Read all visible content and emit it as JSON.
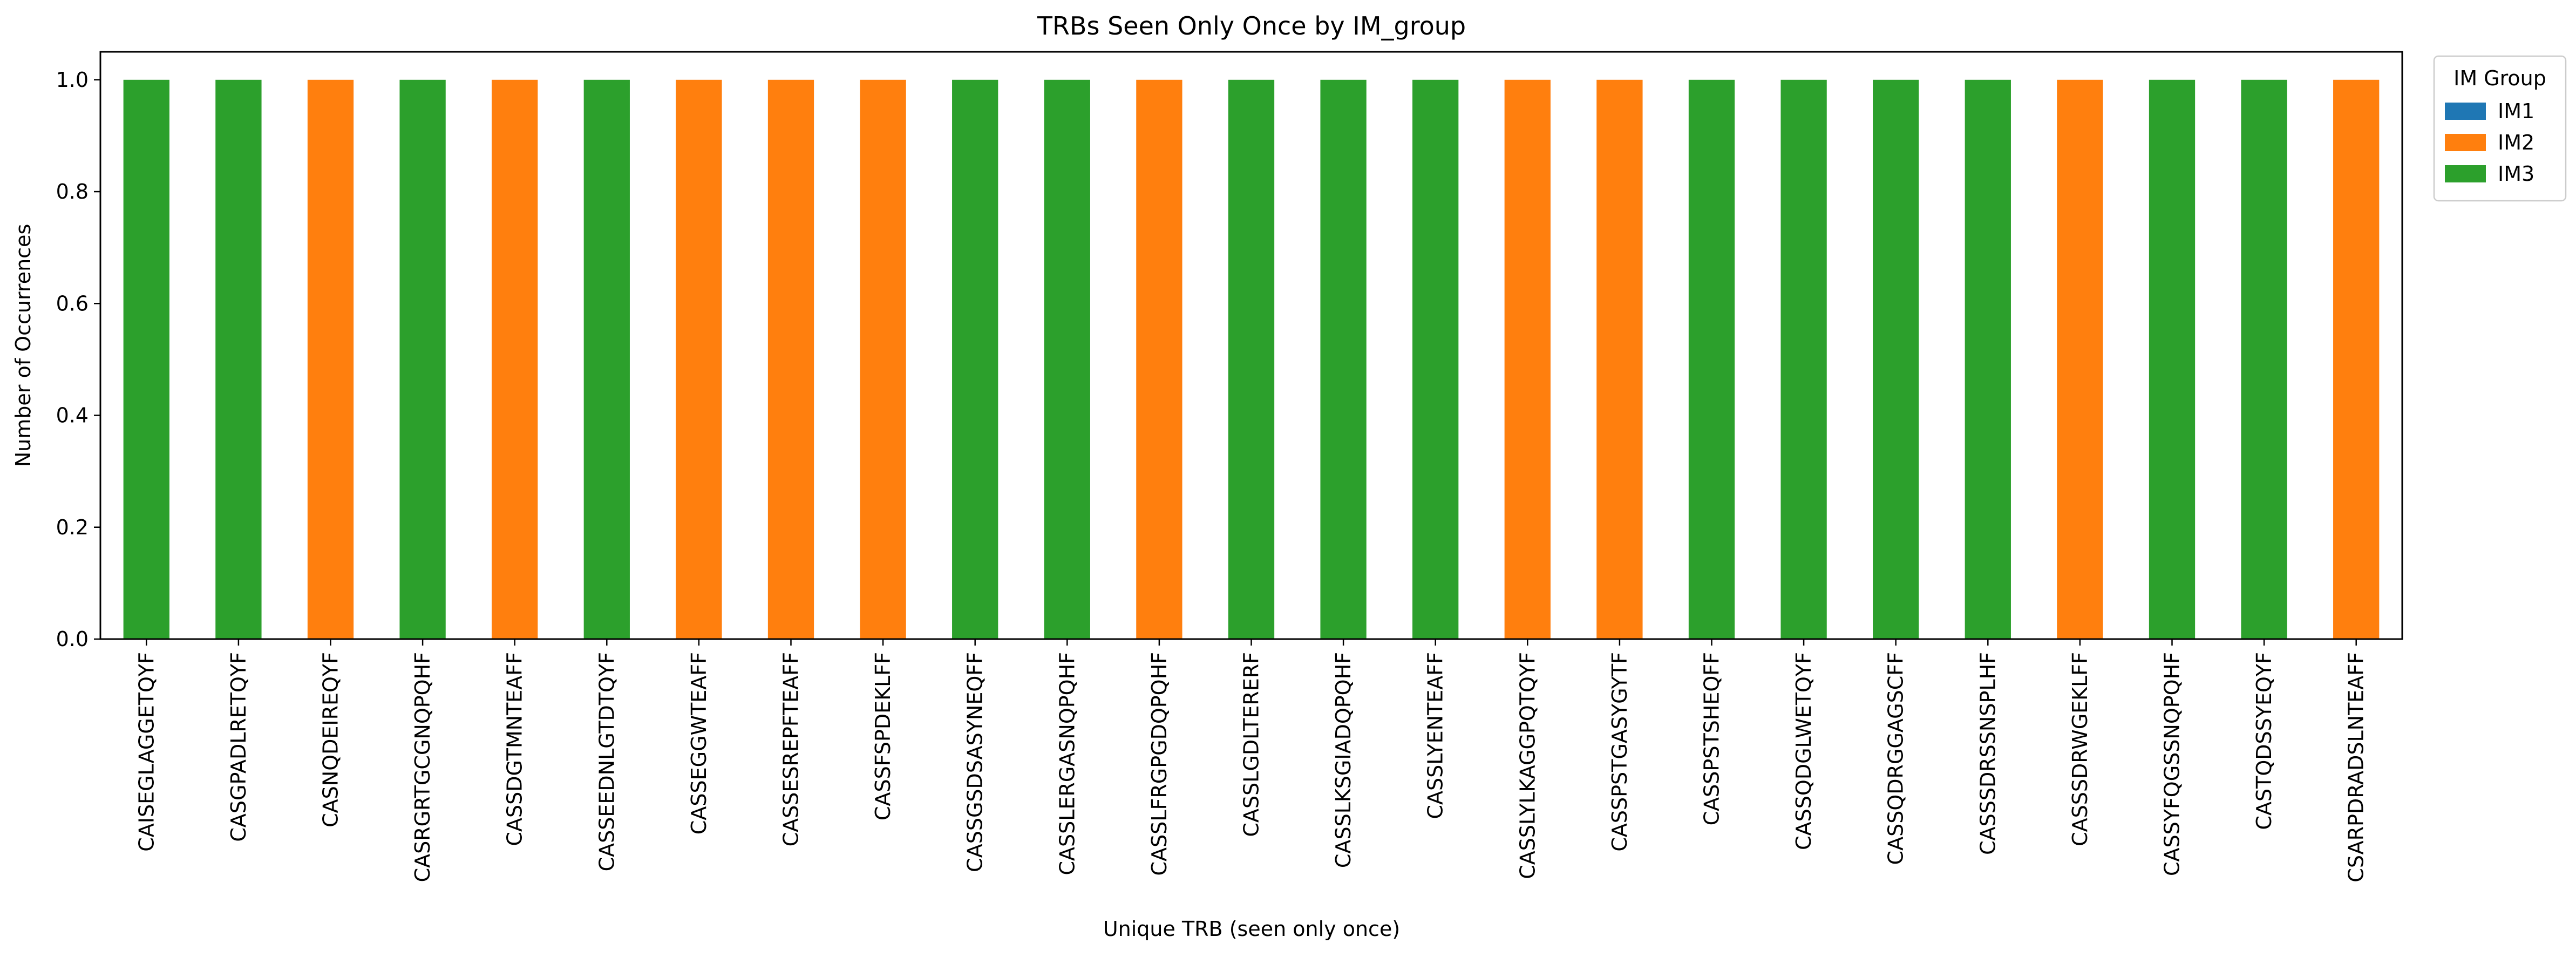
{
  "chart_data": {
    "type": "bar",
    "stacked": true,
    "title": "TRBs Seen Only Once by IM_group",
    "xlabel": "Unique TRB (seen only once)",
    "ylabel": "Number of Occurrences",
    "ylim": [
      0,
      1.05
    ],
    "yticks": [
      "0.0",
      "0.2",
      "0.4",
      "0.6",
      "0.8",
      "1.0"
    ],
    "grid": false,
    "legend": {
      "title": "IM Group",
      "placement": "outside top-right"
    },
    "categories": [
      "CAISEGLAGGETQYF",
      "CASGPADLRETQYF",
      "CASNQDEIREQYF",
      "CASRGRTGCGNQPQHF",
      "CASSDGTMNTEAFF",
      "CASSEEDNLGTDTQYF",
      "CASSEGGWTEAFF",
      "CASSESREPFTEAFF",
      "CASSFSPDEKLFF",
      "CASSGSDSASYNEQFF",
      "CASSLERGASNQPQHF",
      "CASSLFRGPGDQPQHF",
      "CASSLGDLTERERF",
      "CASSLKSGIADQPQHF",
      "CASSLYENTEAFF",
      "CASSLYLKAGGPQTQYF",
      "CASSPSTGASYGYTF",
      "CASSPSTSHEQFF",
      "CASSQDGLWETQYF",
      "CASSQDRGGAGSCFF",
      "CASSSDRSSNSPLHF",
      "CASSSDRWGEKLFF",
      "CASSYFQGSSNQPQHF",
      "CASTQDSSYEQYF",
      "CSARPDRADSLNTEAFF"
    ],
    "series": [
      {
        "name": "IM1",
        "color": "#1f77b4",
        "values": [
          0,
          0,
          0,
          0,
          0,
          0,
          0,
          0,
          0,
          0,
          0,
          0,
          0,
          0,
          0,
          0,
          0,
          0,
          0,
          0,
          0,
          0,
          0,
          0,
          0
        ]
      },
      {
        "name": "IM2",
        "color": "#ff7f0e",
        "values": [
          0,
          0,
          1,
          0,
          1,
          0,
          1,
          1,
          1,
          0,
          0,
          1,
          0,
          0,
          0,
          1,
          1,
          0,
          0,
          0,
          0,
          1,
          0,
          0,
          1
        ]
      },
      {
        "name": "IM3",
        "color": "#2ca02c",
        "values": [
          1,
          1,
          0,
          1,
          0,
          1,
          0,
          0,
          0,
          1,
          1,
          0,
          1,
          1,
          1,
          0,
          0,
          1,
          1,
          1,
          1,
          0,
          1,
          1,
          0
        ]
      }
    ]
  }
}
